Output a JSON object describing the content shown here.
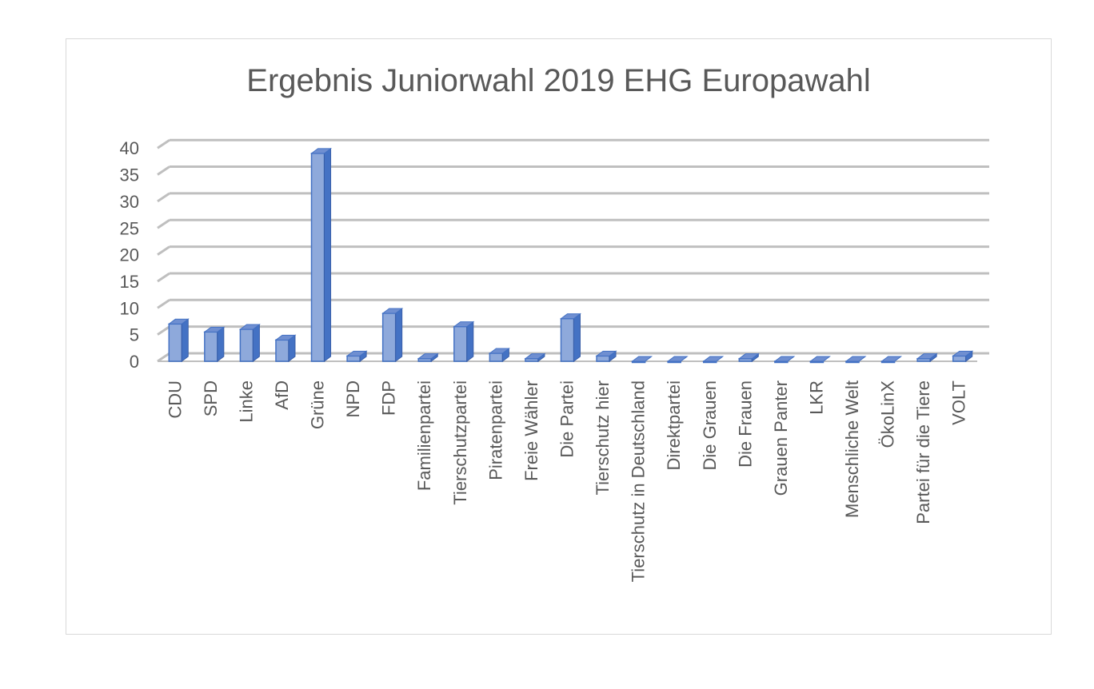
{
  "chart_data": {
    "type": "bar",
    "title": "Ergebnis Juniorwahl 2019 EHG Europawahl",
    "xlabel": "",
    "ylabel": "",
    "ylim": [
      0,
      40
    ],
    "yticks": [
      0,
      5,
      10,
      15,
      20,
      25,
      30,
      35,
      40
    ],
    "grid": true,
    "legend": "none",
    "style": "3d-column",
    "colors": {
      "bar_front": "#8ea9db",
      "bar_side": "#4472c4",
      "grid": "#bfbfbf",
      "text": "#595959"
    },
    "categories": [
      "CDU",
      "SPD",
      "Linke",
      "AfD",
      "Grüne",
      "NPD",
      "FDP",
      "Familienpartei",
      "Tierschutzpartei",
      "Piratenpartei",
      "Freie Wähler",
      "Die Partei",
      "Tierschutz hier",
      "Tierschutz in Deutschland",
      "Direktpartei",
      "Die Grauen",
      "Die Frauen",
      "Grauen Panter",
      "LKR",
      "Menschliche Welt",
      "ÖkoLinX",
      "Partei für die Tiere",
      "VOLT"
    ],
    "values": [
      7,
      5.5,
      6,
      4,
      39,
      1,
      9,
      0.5,
      6.5,
      1.5,
      0.5,
      8,
      1,
      0,
      0,
      0,
      0.5,
      0,
      0,
      0,
      0,
      0.5,
      1
    ]
  }
}
